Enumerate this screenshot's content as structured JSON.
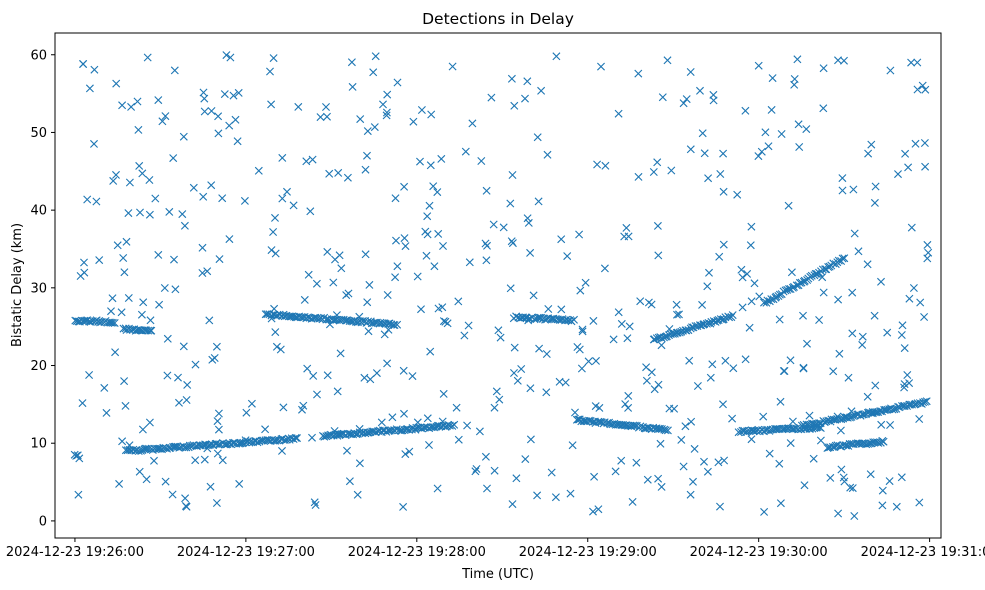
{
  "chart_data": {
    "type": "scatter",
    "title": "Detections in Delay",
    "xlabel": "Time (UTC)",
    "ylabel": "Bistatic Delay (km)",
    "x_tick_labels": [
      "2024-12-23 19:26:00",
      "2024-12-23 19:27:00",
      "2024-12-23 19:28:00",
      "2024-12-23 19:29:00",
      "2024-12-23 19:30:00",
      "2024-12-23 19:31:00"
    ],
    "x_tick_seconds": [
      0,
      60,
      120,
      180,
      240,
      300
    ],
    "y_ticks": [
      0,
      10,
      20,
      30,
      40,
      50,
      60
    ],
    "x_range": [
      "2024-12-23 19:25:53",
      "2024-12-23 19:31:04"
    ],
    "ylim": [
      -2.2,
      62.8
    ],
    "marker": "x",
    "color": "#1f77b4",
    "grid": false,
    "tracks": [
      {
        "start": "2024-12-23 19:26:00",
        "end": "2024-12-23 19:26:14",
        "delay_start_km": 25.8,
        "delay_end_km": 25.6
      },
      {
        "start": "2024-12-23 19:26:17",
        "end": "2024-12-23 19:26:27",
        "delay_start_km": 24.7,
        "delay_end_km": 24.4
      },
      {
        "start": "2024-12-23 19:26:00",
        "end": "2024-12-23 19:26:01",
        "delay_start_km": 8.5,
        "delay_end_km": 8.4
      },
      {
        "start": "2024-12-23 19:26:18",
        "end": "2024-12-23 19:27:18",
        "delay_start_km": 9.0,
        "delay_end_km": 10.6
      },
      {
        "start": "2024-12-23 19:27:07",
        "end": "2024-12-23 19:27:53",
        "delay_start_km": 26.6,
        "delay_end_km": 25.3
      },
      {
        "start": "2024-12-23 19:27:27",
        "end": "2024-12-23 19:28:13",
        "delay_start_km": 10.9,
        "delay_end_km": 12.3
      },
      {
        "start": "2024-12-23 19:28:35",
        "end": "2024-12-23 19:28:55",
        "delay_start_km": 26.2,
        "delay_end_km": 25.8
      },
      {
        "start": "2024-12-23 19:28:56",
        "end": "2024-12-23 19:29:28",
        "delay_start_km": 13.0,
        "delay_end_km": 11.7
      },
      {
        "start": "2024-12-23 19:29:23",
        "end": "2024-12-23 19:29:51",
        "delay_start_km": 23.3,
        "delay_end_km": 26.4
      },
      {
        "start": "2024-12-23 19:29:53",
        "end": "2024-12-23 19:30:22",
        "delay_start_km": 11.5,
        "delay_end_km": 12.0
      },
      {
        "start": "2024-12-23 19:30:02",
        "end": "2024-12-23 19:30:30",
        "delay_start_km": 28.0,
        "delay_end_km": 33.8
      },
      {
        "start": "2024-12-23 19:30:15",
        "end": "2024-12-23 19:30:59",
        "delay_start_km": 12.2,
        "delay_end_km": 15.3
      },
      {
        "start": "2024-12-23 19:30:24",
        "end": "2024-12-23 19:30:44",
        "delay_start_km": 9.5,
        "delay_end_km": 10.2
      }
    ],
    "scattered_points": {
      "count": 560,
      "delay_range_km": [
        0.5,
        60
      ],
      "x_range": [
        "2024-12-23 19:26:00",
        "2024-12-23 19:31:00"
      ]
    }
  }
}
